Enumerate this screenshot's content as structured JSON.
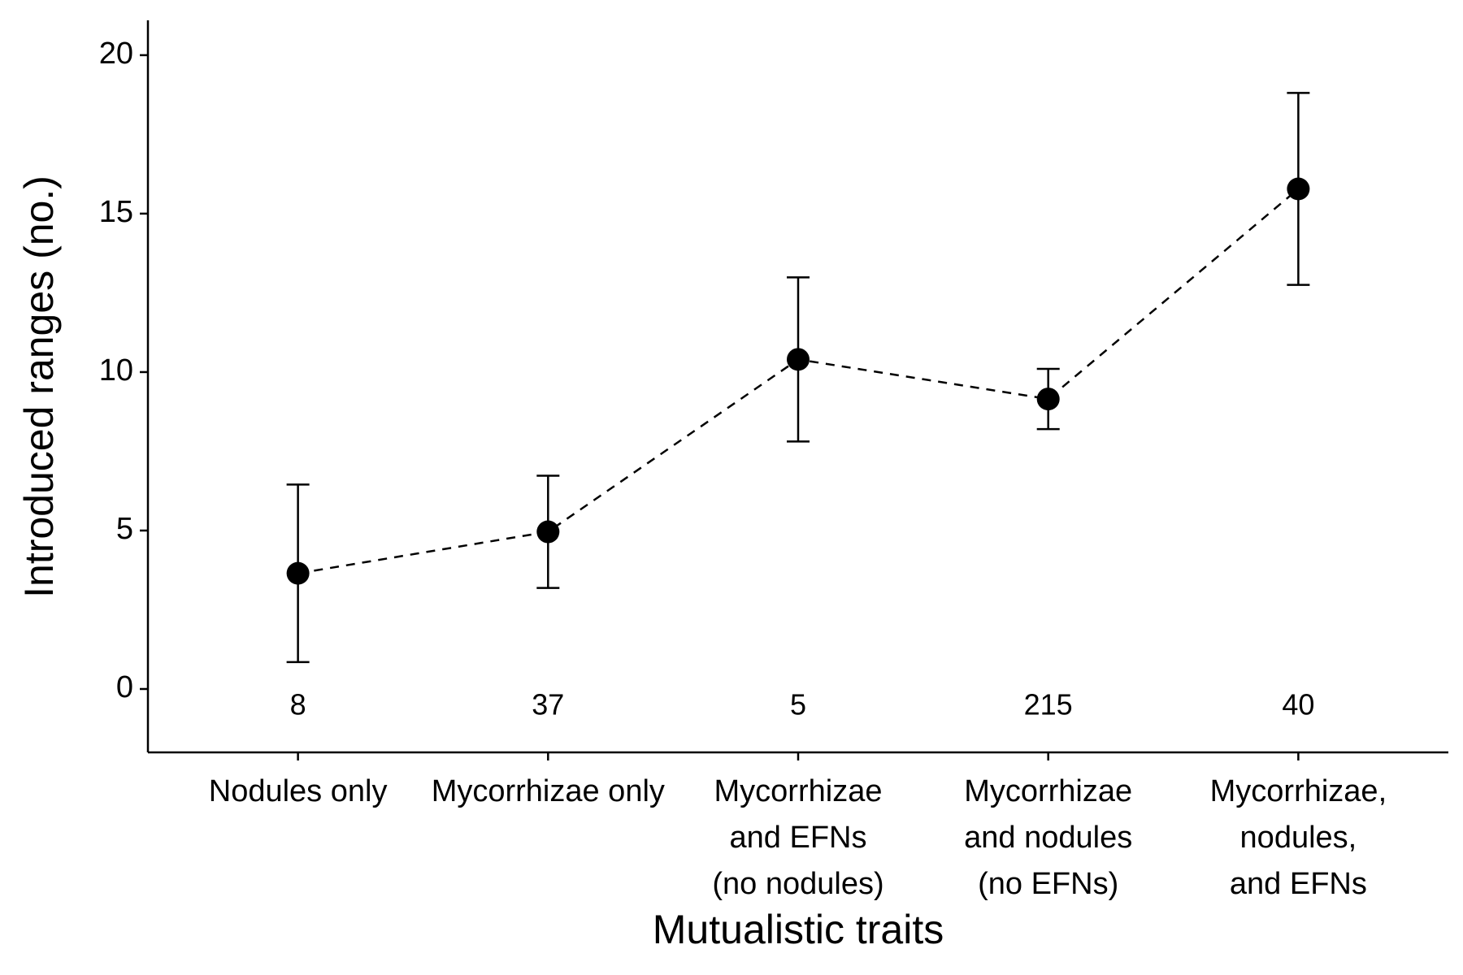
{
  "chart_data": {
    "type": "pointrange",
    "x_label": "Mutualistic traits",
    "y_label": "Introduced ranges (no.)",
    "categories": [
      [
        "Nodules only"
      ],
      [
        "Mycorrhizae only"
      ],
      [
        "Mycorrhizae",
        "and EFNs",
        "(no nodules)"
      ],
      [
        "Mycorrhizae",
        "and nodules",
        "(no EFNs)"
      ],
      [
        "Mycorrhizae,",
        "nodules,",
        "and EFNs"
      ]
    ],
    "values": [
      3.65,
      4.96,
      10.4,
      9.15,
      15.78
    ],
    "errors": [
      2.8,
      1.77,
      2.59,
      0.95,
      3.03
    ],
    "sample_sizes": [
      8,
      37,
      5,
      215,
      40
    ],
    "color": "#000000",
    "line_style": "dashed",
    "ylim": [
      -2,
      21.1
    ],
    "yticks": [
      0,
      5,
      10,
      15,
      20
    ],
    "grid": false
  }
}
